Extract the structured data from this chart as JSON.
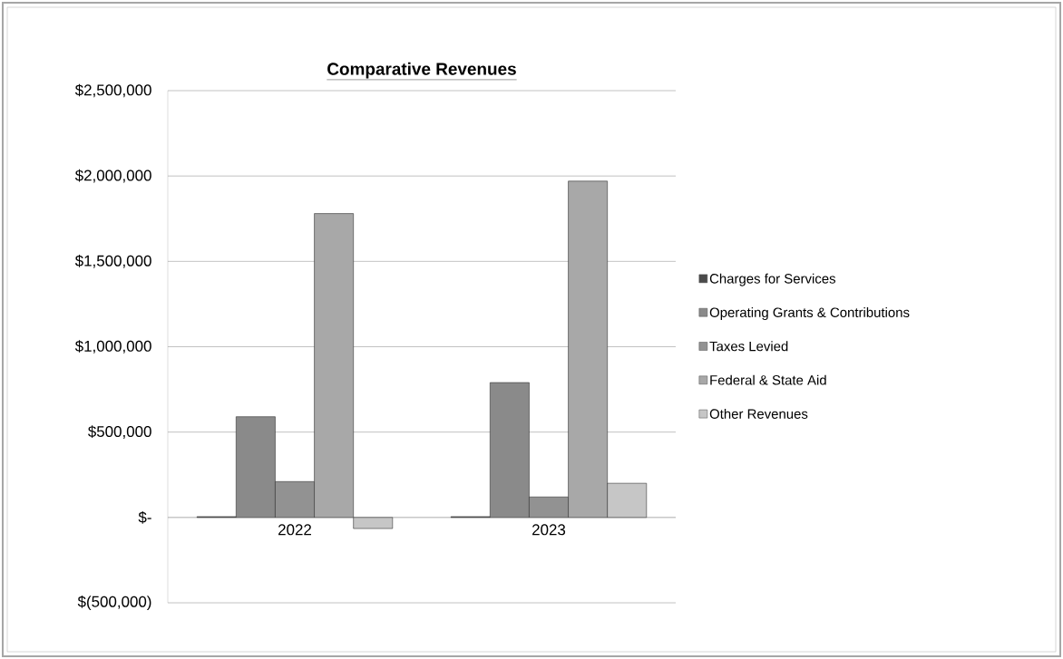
{
  "chart_data": {
    "type": "bar",
    "title": "Comparative Revenues",
    "categories": [
      "2022",
      "2023"
    ],
    "series": [
      {
        "name": "Charges for Services",
        "color": "#4a4a4a",
        "values": [
          5000,
          5000
        ]
      },
      {
        "name": "Operating Grants & Contributions",
        "color": "#8a8a8a",
        "values": [
          590000,
          790000
        ]
      },
      {
        "name": "Taxes Levied",
        "color": "#929292",
        "values": [
          210000,
          120000
        ]
      },
      {
        "name": "Federal & State Aid",
        "color": "#a8a8a8",
        "values": [
          1780000,
          1970000
        ]
      },
      {
        "name": "Other Revenues",
        "color": "#c6c6c6",
        "values": [
          -65000,
          200000
        ]
      }
    ],
    "ylim": [
      -500000,
      2500000
    ],
    "yticks": [
      {
        "value": -500000,
        "label": "$(500,000)"
      },
      {
        "value": 0,
        "label": "$-"
      },
      {
        "value": 500000,
        "label": "$500,000"
      },
      {
        "value": 1000000,
        "label": "$1,000,000"
      },
      {
        "value": 1500000,
        "label": "$1,500,000"
      },
      {
        "value": 2000000,
        "label": "$2,000,000"
      },
      {
        "value": 2500000,
        "label": "$2,500,000"
      }
    ],
    "grid": "y",
    "legend": "right"
  }
}
